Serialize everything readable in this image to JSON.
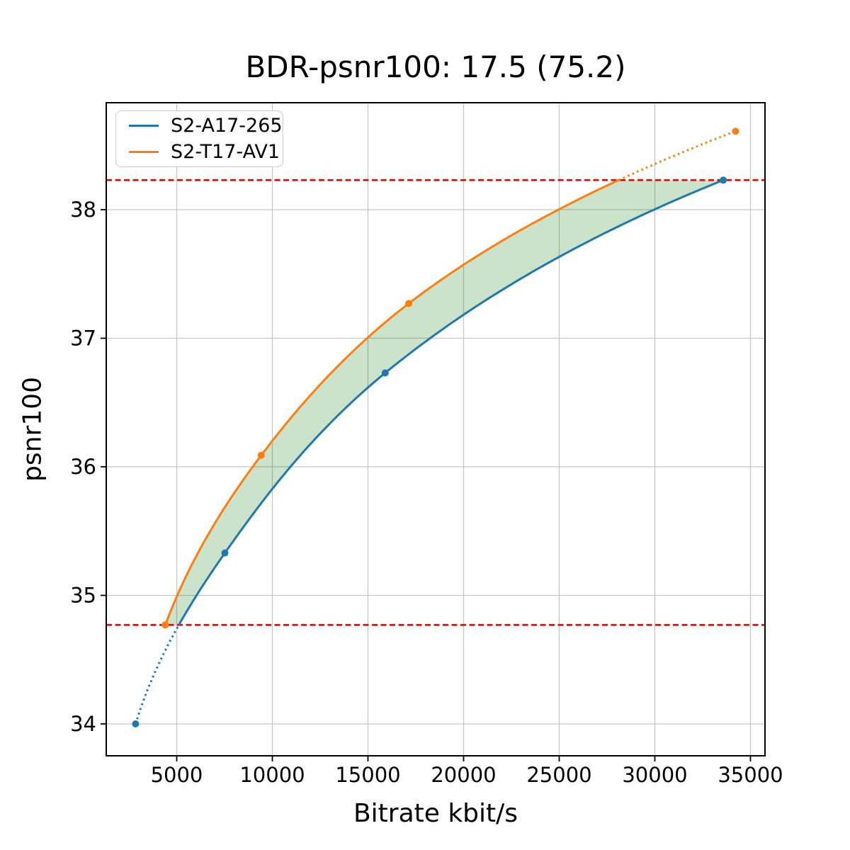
{
  "chart_data": {
    "type": "line",
    "title": "BDR-psnr100: 17.5 (75.2)",
    "xlabel": "Bitrate kbit/s",
    "ylabel": "psnr100",
    "xlim": [
      1315,
      35760
    ],
    "ylim": [
      33.752,
      38.832
    ],
    "xticks": [
      5000,
      10000,
      15000,
      20000,
      25000,
      30000,
      35000
    ],
    "yticks": [
      34,
      35,
      36,
      37,
      38
    ],
    "grid": true,
    "grid_color": "#c6c6c6",
    "legend_position": "upper left",
    "interpolation": "pchip-log-x",
    "series": [
      {
        "name": "S2-A17-265",
        "color": "#1f77b4",
        "x": [
          2850,
          7520,
          15900,
          33580
        ],
        "y": [
          34.0,
          35.33,
          36.73,
          38.23
        ]
      },
      {
        "name": "S2-T17-AV1",
        "color": "#ff7f0e",
        "x": [
          4400,
          9420,
          17130,
          34220
        ],
        "y": [
          34.77,
          36.09,
          37.27,
          38.61
        ]
      }
    ],
    "hlines": [
      {
        "y": 38.23,
        "color": "#ff0000",
        "style": "dashed"
      },
      {
        "y": 34.77,
        "color": "#ff0000",
        "style": "dashed"
      }
    ],
    "shaded_region": {
      "between": [
        "S2-T17-AV1",
        "S2-A17-265"
      ],
      "y_range": [
        34.77,
        38.23
      ],
      "color": "rgba(34,139,34,0.24)"
    }
  }
}
